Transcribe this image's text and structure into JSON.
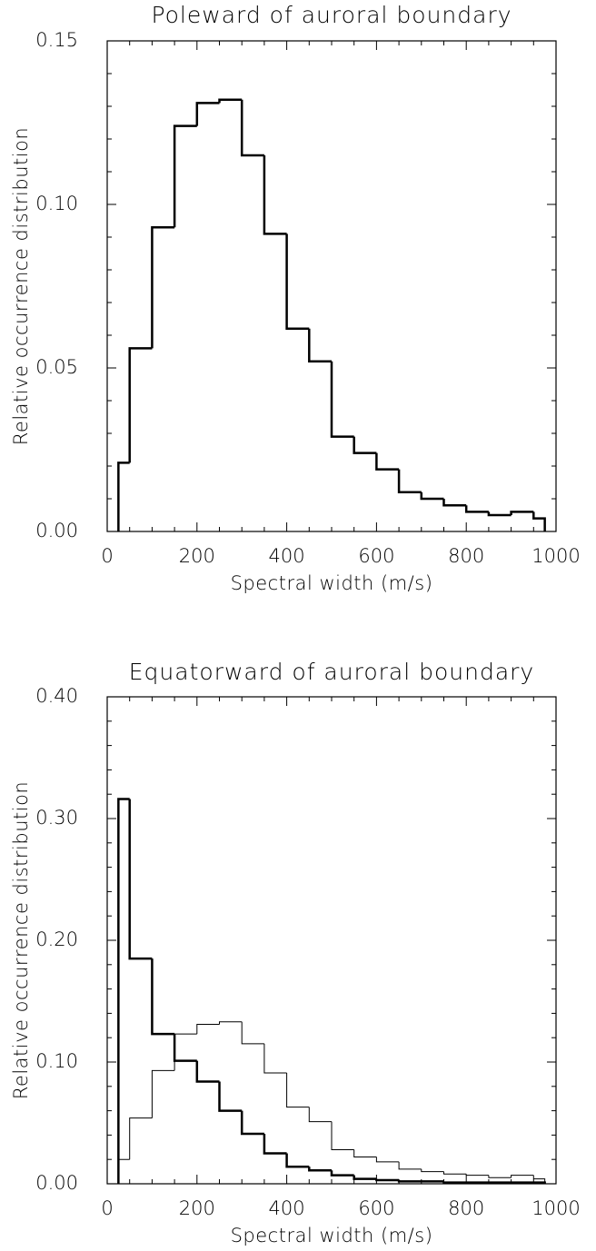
{
  "chart_data": [
    {
      "type": "histogram",
      "title": "Poleward of auroral boundary",
      "x_label": "Spectral width (m/s)",
      "y_label": "Relative occurrence distribution",
      "bins": [
        25,
        50,
        100,
        150,
        200,
        250,
        300,
        350,
        400,
        450,
        500,
        550,
        600,
        650,
        700,
        750,
        800,
        850,
        900,
        950,
        975
      ],
      "series": [
        {
          "color": "#000000",
          "width": 2.5,
          "values": [
            0.021,
            0.056,
            0.093,
            0.124,
            0.131,
            0.132,
            0.115,
            0.091,
            0.062,
            0.052,
            0.029,
            0.024,
            0.019,
            0.012,
            0.01,
            0.008,
            0.006,
            0.005,
            0.006,
            0.004
          ]
        }
      ],
      "xlim": [
        0,
        1000
      ],
      "xticks": [
        0,
        200,
        400,
        600,
        800,
        1000
      ],
      "xminorticks": [
        50,
        100,
        150,
        250,
        300,
        350,
        450,
        500,
        550,
        650,
        700,
        750,
        850,
        900,
        950
      ],
      "ylim": [
        0,
        0.15
      ],
      "yticks": [
        {
          "value": 0,
          "label": "0.00"
        },
        {
          "value": 0.05,
          "label": "0.05"
        },
        {
          "value": 0.1,
          "label": "0.10"
        },
        {
          "value": 0.15,
          "label": "0.15"
        }
      ],
      "yminorticks": [
        0.01,
        0.02,
        0.03,
        0.04,
        0.06,
        0.07,
        0.08,
        0.09,
        0.11,
        0.12,
        0.13,
        0.14
      ]
    },
    {
      "type": "histogram",
      "title": "Equatorward of auroral boundary",
      "x_label": "Spectral width (m/s)",
      "y_label": "Relative occurrence distribution",
      "bins": [
        25,
        50,
        100,
        150,
        200,
        250,
        300,
        350,
        400,
        450,
        500,
        550,
        600,
        650,
        700,
        750,
        800,
        850,
        900,
        950,
        975
      ],
      "series": [
        {
          "color": "#000000",
          "width": 2.5,
          "values": [
            0.316,
            0.185,
            0.123,
            0.101,
            0.084,
            0.06,
            0.041,
            0.025,
            0.014,
            0.011,
            0.007,
            0.004,
            0.003,
            0.002,
            0.002,
            0.001,
            0.001,
            0.001,
            0.001,
            0.001
          ]
        },
        {
          "color": "#000000",
          "width": 1,
          "values": [
            0.02,
            0.054,
            0.093,
            0.123,
            0.131,
            0.133,
            0.115,
            0.091,
            0.063,
            0.051,
            0.028,
            0.022,
            0.018,
            0.012,
            0.01,
            0.008,
            0.007,
            0.005,
            0.007,
            0.004
          ]
        }
      ],
      "xlim": [
        0,
        1000
      ],
      "xticks": [
        0,
        200,
        400,
        600,
        800,
        1000
      ],
      "xminorticks": [
        50,
        100,
        150,
        250,
        300,
        350,
        450,
        500,
        550,
        650,
        700,
        750,
        850,
        900,
        950
      ],
      "ylim": [
        0,
        0.4
      ],
      "yticks": [
        {
          "value": 0,
          "label": "0.00"
        },
        {
          "value": 0.1,
          "label": "0.10"
        },
        {
          "value": 0.2,
          "label": "0.20"
        },
        {
          "value": 0.3,
          "label": "0.30"
        },
        {
          "value": 0.4,
          "label": "0.40"
        }
      ],
      "yminorticks": [
        0.02,
        0.04,
        0.06,
        0.08,
        0.12,
        0.14,
        0.16,
        0.18,
        0.22,
        0.24,
        0.26,
        0.28,
        0.32,
        0.34,
        0.36,
        0.38
      ]
    }
  ]
}
